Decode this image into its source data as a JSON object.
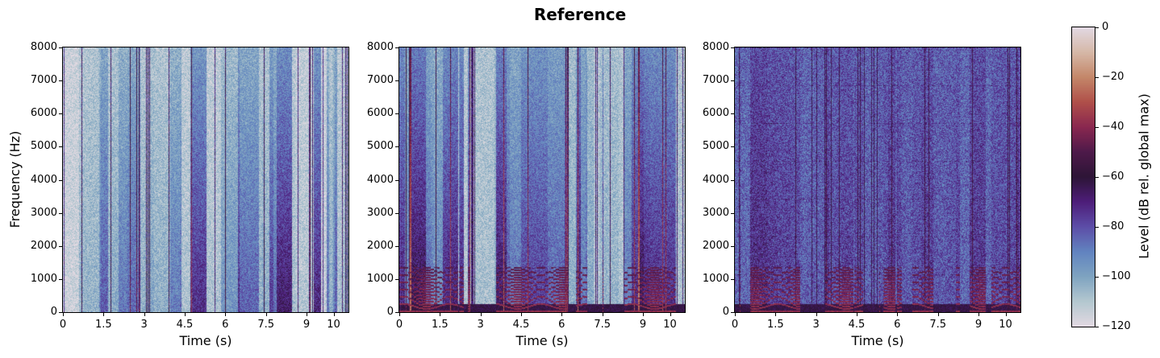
{
  "chart_data": {
    "type": "heatmap",
    "title": "Reference",
    "panels": [
      {
        "name": "spectrogram-1",
        "xlabel": "Time (s)",
        "ylabel": "Frequency (Hz)",
        "background_db": -115,
        "harmonics": false
      },
      {
        "name": "spectrogram-2",
        "xlabel": "Time (s)",
        "ylabel": "",
        "background_db": -110,
        "harmonics": true
      },
      {
        "name": "spectrogram-3",
        "xlabel": "Time (s)",
        "ylabel": "",
        "background_db": -85,
        "harmonics": true
      }
    ],
    "xlim": [
      0,
      10.55
    ],
    "ylim": [
      0,
      8000
    ],
    "xticks": [
      0,
      1.5,
      3,
      4.5,
      6,
      7.5,
      9,
      10
    ],
    "xtick_labels": [
      "0",
      "1.5",
      "3",
      "4.5",
      "6",
      "7.5",
      "9",
      "10"
    ],
    "yticks": [
      0,
      1000,
      2000,
      3000,
      4000,
      5000,
      6000,
      7000,
      8000
    ],
    "ytick_labels": [
      "0",
      "1000",
      "2000",
      "3000",
      "4000",
      "5000",
      "6000",
      "7000",
      "8000"
    ],
    "colorbar": {
      "label": "Level (dB rel. global max)",
      "range": [
        -120,
        0
      ],
      "ticks": [
        0,
        -20,
        -40,
        -60,
        -80,
        -100,
        -120
      ],
      "tick_labels": [
        "0",
        "−20",
        "−40",
        "−60",
        "−80",
        "−100",
        "−120"
      ],
      "colormap_stops": [
        "#e2d9e2",
        "#b4c8d0",
        "#7fa4c1",
        "#6284c0",
        "#5d4ea8",
        "#4e1e7a",
        "#2e1537",
        "#4e1a4a",
        "#8a2850",
        "#b0504a",
        "#c4876a",
        "#d6b8a8",
        "#e2d9e2"
      ]
    }
  }
}
